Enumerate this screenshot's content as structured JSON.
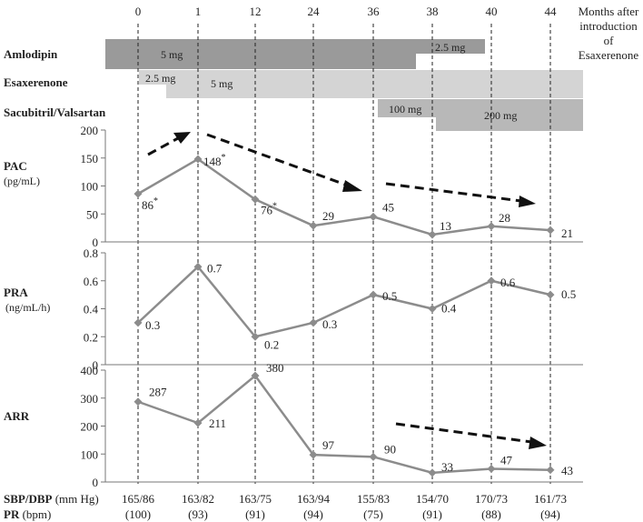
{
  "header": {
    "months": [
      "0",
      "1",
      "12",
      "24",
      "36",
      "38",
      "40",
      "44"
    ],
    "months_caption": [
      "Months after",
      "introduction",
      "of",
      "Esaxerenone"
    ]
  },
  "drugs": {
    "amlodipin": {
      "label": "Amlodipin",
      "dose1": "5 mg",
      "dose2": "2.5 mg"
    },
    "esaxerenone": {
      "label": "Esaxerenone",
      "dose1": "2.5 mg",
      "dose2": "5 mg"
    },
    "sacubitril": {
      "label": "Sacubitril/Valsartan",
      "dose1": "100 mg",
      "dose2": "200 mg"
    }
  },
  "colors": {
    "dark_bar": "#9a9a9a",
    "light_bar": "#d4d4d4",
    "mid_bar": "#b8b8b8",
    "line": "#8c8c8c"
  },
  "chart_data": [
    {
      "type": "line",
      "ylabel_main": "PAC",
      "ylabel_unit": "(pg/mL)",
      "categories": [
        "0",
        "1",
        "12",
        "24",
        "36",
        "38",
        "40",
        "44"
      ],
      "values": [
        86,
        148,
        76,
        29,
        45,
        13,
        28,
        21
      ],
      "labels": [
        "86",
        "148",
        "76",
        "29",
        "45",
        "13",
        "28",
        "21"
      ],
      "asterisk": [
        true,
        true,
        true,
        false,
        false,
        false,
        false,
        false
      ],
      "yticks": [
        "0",
        "50",
        "100",
        "150",
        "200"
      ],
      "ylim": [
        0,
        200
      ]
    },
    {
      "type": "line",
      "ylabel_main": "PRA",
      "ylabel_unit": "(ng/mL/h)",
      "categories": [
        "0",
        "1",
        "12",
        "24",
        "36",
        "38",
        "40",
        "44"
      ],
      "values": [
        0.3,
        0.7,
        0.2,
        0.3,
        0.5,
        0.4,
        0.6,
        0.5
      ],
      "labels": [
        "0.3",
        "0.7",
        "0.2",
        "0.3",
        "0.5",
        "0.4",
        "0.6",
        "0.5"
      ],
      "yticks": [
        "0",
        "0.2",
        "0.4",
        "0.6",
        "0.8"
      ],
      "ylim": [
        0,
        0.8
      ]
    },
    {
      "type": "line",
      "ylabel_main": "ARR",
      "ylabel_unit": "",
      "categories": [
        "0",
        "1",
        "12",
        "24",
        "36",
        "38",
        "40",
        "44"
      ],
      "values": [
        287,
        211,
        380,
        97,
        90,
        33,
        47,
        43
      ],
      "labels": [
        "287",
        "211",
        "380",
        "97",
        "90",
        "33",
        "47",
        "43"
      ],
      "yticks": [
        "0",
        "100",
        "200",
        "300",
        "400"
      ],
      "ylim": [
        0,
        400
      ]
    }
  ],
  "vitals": {
    "label_sbp": "SBP/DBP",
    "unit_sbp": " (mm Hg)",
    "label_pr": "PR",
    "unit_pr": " (bpm)",
    "bp": [
      "165/86",
      "163/82",
      "163/75",
      "163/94",
      "155/83",
      "154/70",
      "170/73",
      "161/73"
    ],
    "pr": [
      "(100)",
      "(93)",
      "(91)",
      "(94)",
      "(75)",
      "(91)",
      "(88)",
      "(94)"
    ]
  }
}
